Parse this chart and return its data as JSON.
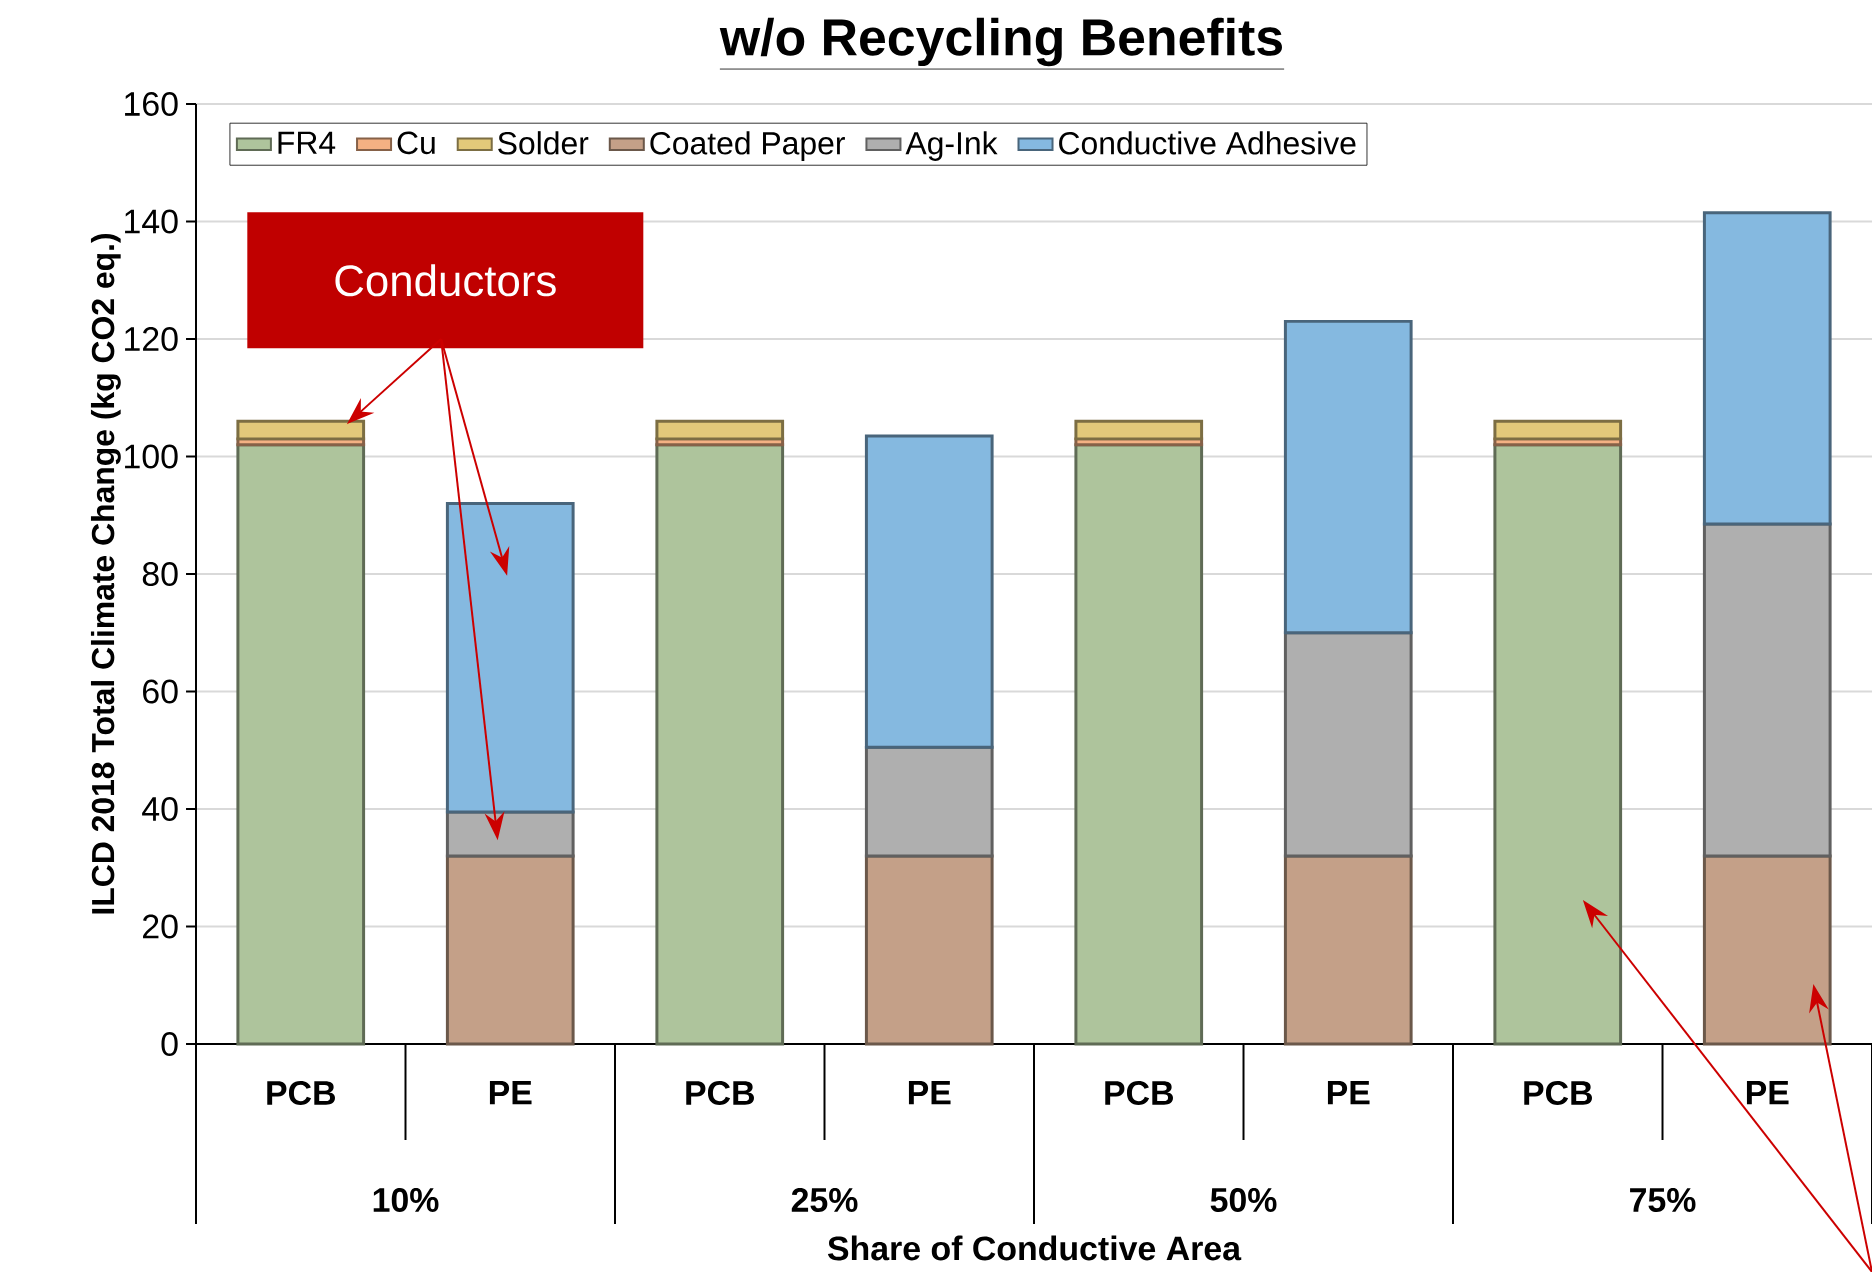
{
  "chart_data": {
    "type": "bar",
    "stacked": true,
    "title": "w/o Recycling Benefits",
    "xlabel": "Share of Conductive Area",
    "ylabel": "ILCD 2018 Total Climate Change (kg CO2 eq.)",
    "categories": [
      "PCB",
      "PE",
      "PCB",
      "PE",
      "PCB",
      "PE",
      "PCB",
      "PE"
    ],
    "series": [
      {
        "name": "FR4",
        "color": "#aec49c",
        "values": [
          102,
          null,
          102,
          null,
          102,
          null,
          102,
          null
        ]
      },
      {
        "name": "Cu",
        "color": "#f4b183",
        "values": [
          1,
          null,
          1,
          null,
          1,
          null,
          1,
          null
        ]
      },
      {
        "name": "Solder",
        "color": "#e2c97a",
        "values": [
          3,
          null,
          3,
          null,
          3,
          null,
          3,
          null
        ]
      },
      {
        "name": "Coated Paper",
        "color": "#c4a088",
        "values": [
          null,
          32,
          null,
          32,
          null,
          32,
          null,
          32
        ]
      },
      {
        "name": "Ag-Ink",
        "color": "#afafaf",
        "values": [
          null,
          7.5,
          null,
          18.5,
          null,
          38,
          null,
          56.5
        ]
      },
      {
        "name": "Conductive Adhesive",
        "color": "#85b9e0",
        "values": [
          null,
          52.5,
          null,
          53,
          null,
          53,
          null,
          53
        ]
      }
    ],
    "ylim": [
      0,
      160
    ],
    "yticks": [
      0,
      20,
      40,
      60,
      80,
      100,
      120,
      140,
      160
    ],
    "grid": "y",
    "legend": "top left",
    "annotations": [
      "Conductors",
      "10%",
      "25%",
      "50%",
      "75%"
    ]
  }
}
